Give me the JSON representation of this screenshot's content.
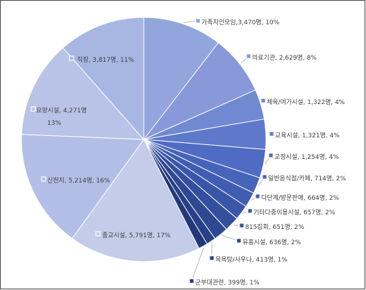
{
  "chart_data": {
    "type": "pie",
    "legend": "none",
    "categories": [
      "가족지인모임",
      "의료기관",
      "체육/여가시설",
      "교육시설",
      "교정시설",
      "일반음식점/카페",
      "다단계/방문판매",
      "기타다중이용시설",
      "815집회",
      "유흥시설",
      "목욕탕/사우나",
      "군부대관련",
      "종교시설",
      "신천지",
      "요양시설",
      "직장"
    ],
    "values": [
      3470,
      2629,
      1322,
      1321,
      1254,
      714,
      664,
      657,
      651,
      636,
      413,
      399,
      5791,
      5214,
      4271,
      3817
    ],
    "percentages": [
      10,
      8,
      4,
      4,
      4,
      2,
      2,
      2,
      2,
      2,
      1,
      1,
      17,
      16,
      13,
      11
    ],
    "data_labels": [
      [
        "가족지인모임,3,470명, 10%"
      ],
      [
        "의료기관, 2,629명, 8%"
      ],
      [
        "체육/여가시설, 1,322명, 4%"
      ],
      [
        "교육시설, 1,321명, 4%"
      ],
      [
        "교정시설, 1,254명, 4%"
      ],
      [
        "일반음식점/카페, 714명, 2%"
      ],
      [
        "다단계/방문판매, 664명, 2%"
      ],
      [
        "기타다중이용시설, 657명, 2%"
      ],
      [
        "815집회, 651명, 2%"
      ],
      [
        "유흥시설, 636명, 2%"
      ],
      [
        "목욕탕/사우나, 413명, 1%"
      ],
      [
        "군부대관련, 399명, 1%"
      ],
      [
        "종교시설, 5,791명, 17%"
      ],
      [
        "신천지, 5,214명, 16%"
      ],
      [
        "요양시설, 4,271명",
        "13%"
      ],
      [
        "직장, 3,817명, 11%"
      ]
    ],
    "colors": [
      "#93a5dd",
      "#8799d8",
      "#7189d1",
      "#5f79ca",
      "#4f6bc3",
      "#4764bb",
      "#405db2",
      "#3a56a8",
      "#344f9d",
      "#2e4892",
      "#284086",
      "#22387a",
      "#c4ccea",
      "#b3bee6",
      "#b9c3e8",
      "#a8b6e3"
    ]
  }
}
